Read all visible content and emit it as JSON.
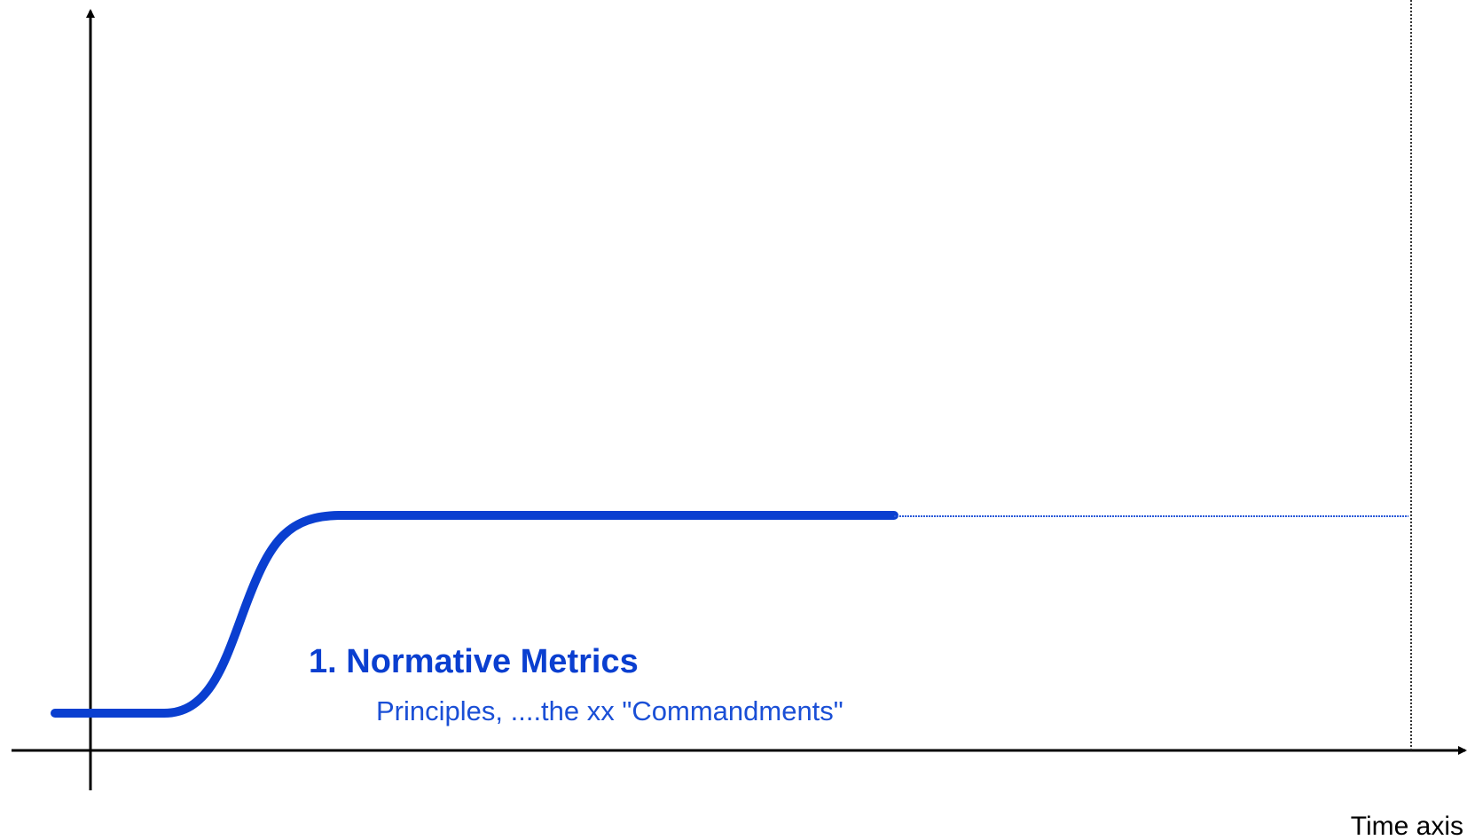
{
  "label": {
    "title": "1. Normative Metrics",
    "subtitle": "Principles, ....the xx \"Commandments\""
  },
  "x_axis": {
    "label": "Time axis"
  }
}
